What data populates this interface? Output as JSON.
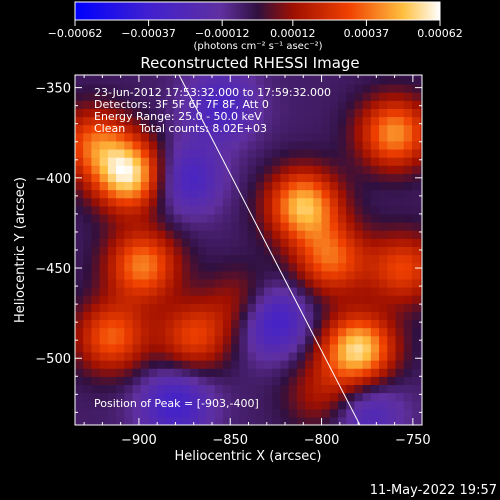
{
  "chart_data": {
    "type": "heatmap",
    "title": "Reconstructed RHESSI Image",
    "xlabel": "Heliocentric X (arcsec)",
    "ylabel": "Heliocentric Y (arcsec)",
    "xlim": [
      -935,
      -745
    ],
    "ylim": [
      -537,
      -343
    ],
    "x_ticks": [
      -900,
      -850,
      -800,
      -750
    ],
    "x_tick_labels": [
      "−900",
      "−850",
      "−800",
      "−750"
    ],
    "y_ticks": [
      -350,
      -400,
      -450,
      -500
    ],
    "y_tick_labels": [
      "−350",
      "−400",
      "−450",
      "−500"
    ],
    "colorbar": {
      "range": [
        -0.00062,
        0.00062
      ],
      "ticks": [
        -0.00062,
        -0.00037,
        -0.00012,
        0.00012,
        0.00037,
        0.00062
      ],
      "tick_labels": [
        "−0.00062",
        "−0.00037",
        "−0.00012",
        "0.00012",
        "0.00037",
        "0.00062"
      ],
      "units": "(photons cm⁻² s⁻¹ asec⁻²)"
    },
    "info_lines": [
      "23-Jun-2012 17:53:32.000 to 17:59:32.000",
      "Detectors: 3F 5F 6F 7F 8F, Att 0",
      "Energy Range: 25.0 - 50.0 keV",
      "Clean    Total counts: 8.02E+03"
    ],
    "peak_label": "Position of Peak = [-903,-400]",
    "limb_line": [
      [
        -878,
        -343
      ],
      [
        -779,
        -537
      ]
    ],
    "blobs": [
      {
        "x": -905,
        "y": -398,
        "v": 0.00062
      },
      {
        "x": -898,
        "y": -448,
        "v": 0.00045
      },
      {
        "x": -925,
        "y": -380,
        "v": 0.00036
      },
      {
        "x": -915,
        "y": -488,
        "v": 0.0004
      },
      {
        "x": -870,
        "y": -488,
        "v": 0.00034
      },
      {
        "x": -810,
        "y": -415,
        "v": 0.00055
      },
      {
        "x": -795,
        "y": -445,
        "v": 0.0004
      },
      {
        "x": -780,
        "y": -495,
        "v": 0.0006
      },
      {
        "x": -760,
        "y": -375,
        "v": 0.00048
      },
      {
        "x": -755,
        "y": -450,
        "v": 0.00035
      },
      {
        "x": -842,
        "y": -470,
        "v": 0.00025
      },
      {
        "x": -800,
        "y": -520,
        "v": 0.0002
      },
      {
        "x": -880,
        "y": -525,
        "v": -0.0003
      },
      {
        "x": -828,
        "y": -478,
        "v": -0.00038
      },
      {
        "x": -875,
        "y": -400,
        "v": -0.00028
      },
      {
        "x": -855,
        "y": -360,
        "v": -0.00025
      },
      {
        "x": -775,
        "y": -530,
        "v": -0.00022
      }
    ]
  },
  "footer": {
    "timestamp": "11-May-2022 19:57"
  }
}
